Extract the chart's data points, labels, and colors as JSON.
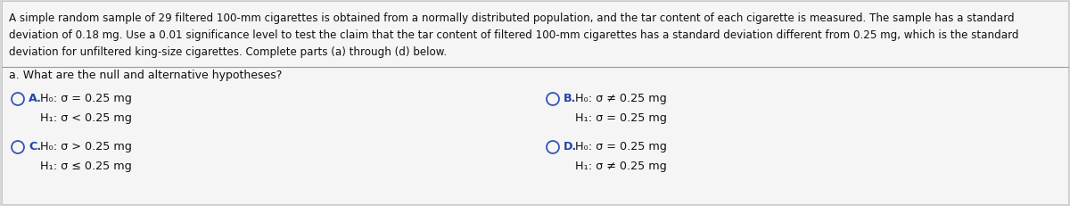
{
  "bg_color": "#d8d8d8",
  "content_bg": "#f5f5f5",
  "separator_color": "#999999",
  "paragraph_lines": [
    "A simple random sample of 29 filtered 100-mm cigarettes is obtained from a normally distributed population, and the tar content of each cigarette is measured. The sample has a standard",
    "deviation of 0.18 mg. Use a 0.01 significance level to test the claim that the tar content of filtered 100-mm cigarettes has a standard deviation different from 0.25 mg, which is the standard",
    "deviation for unfiltered king-size cigarettes. Complete parts (a) through (d) below."
  ],
  "section_label": "a. What are the null and alternative hypotheses?",
  "options": [
    {
      "label": "A.",
      "line1": "H₀: σ = 0.25 mg",
      "line2": "H₁: σ < 0.25 mg",
      "col": "left",
      "row": "top"
    },
    {
      "label": "B.",
      "line1": "H₀: σ ≠ 0.25 mg",
      "line2": "H₁: σ = 0.25 mg",
      "col": "right",
      "row": "top"
    },
    {
      "label": "C.",
      "line1": "H₀: σ > 0.25 mg",
      "line2": "H₁: σ ≤ 0.25 mg",
      "col": "left",
      "row": "bottom"
    },
    {
      "label": "D.",
      "line1": "H₀: σ = 0.25 mg",
      "line2": "H₁: σ ≠ 0.25 mg",
      "col": "right",
      "row": "bottom"
    }
  ],
  "text_color": "#111111",
  "option_label_color": "#2244aa",
  "circle_color": "#3355bb",
  "para_fontsize": 8.6,
  "section_fontsize": 9.0,
  "option_fontsize": 9.2,
  "label_fontsize": 9.2
}
